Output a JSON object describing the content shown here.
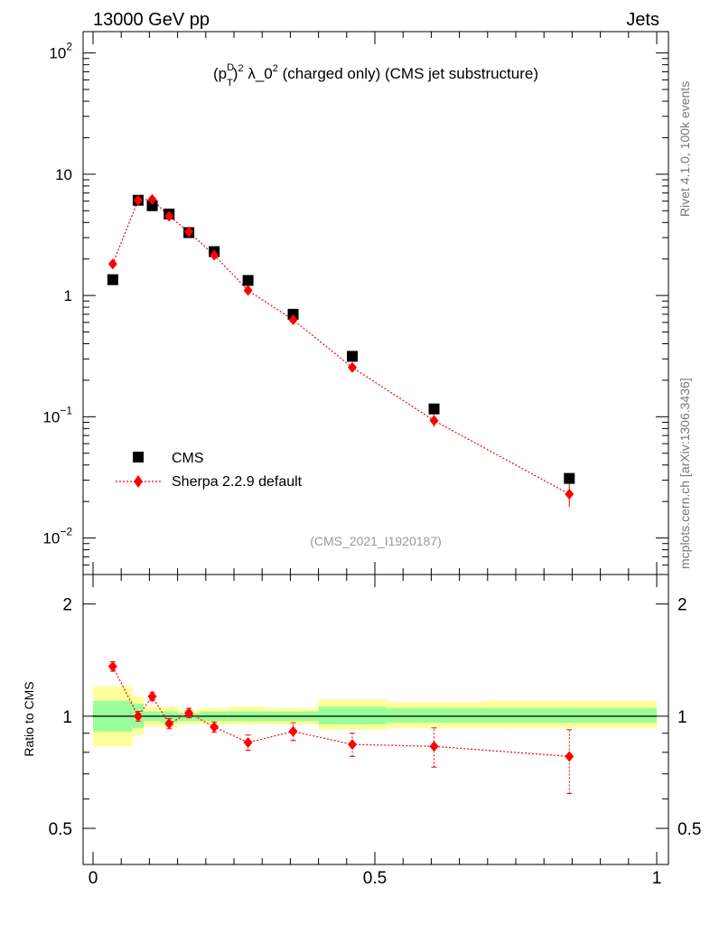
{
  "header": {
    "left": "13000 GeV pp",
    "right": "Jets"
  },
  "plot_title": "(pTD)2 λ_02 (charged only) (CMS jet substructure)",
  "side_labels": {
    "rivet": "Rivet 4.1.0,  100k events",
    "mcplots": "mcplots.cern.ch [arXiv:1306.3436]"
  },
  "watermark": "(CMS_2021_I1920187)",
  "legend": {
    "cms": "CMS",
    "sherpa": "Sherpa 2.2.9 default"
  },
  "ratio_ylabel": "Ratio to CMS",
  "colors": {
    "data": "#000000",
    "mc": "#ff0000",
    "band_inner": "#99ff99",
    "band_outer": "#ffff99"
  },
  "chart_data": [
    {
      "type": "scatter",
      "panel": "main",
      "yscale": "log",
      "xlim": [
        0,
        1
      ],
      "ylim": [
        0.005,
        150
      ],
      "yticks": [
        {
          "value": 0.01,
          "base": "10",
          "exp": "−2"
        },
        {
          "value": 0.1,
          "base": "10",
          "exp": "−1"
        },
        {
          "value": 1,
          "label": "1"
        },
        {
          "value": 10,
          "label": "10"
        },
        {
          "value": 100,
          "base": "10",
          "exp": "2"
        }
      ],
      "series": [
        {
          "name": "CMS",
          "marker": "square",
          "x": [
            0.035,
            0.08,
            0.105,
            0.135,
            0.17,
            0.215,
            0.275,
            0.355,
            0.46,
            0.605,
            0.845
          ],
          "y": [
            1.35,
            6.1,
            5.5,
            4.7,
            3.3,
            2.3,
            1.33,
            0.7,
            0.315,
            0.116,
            0.031
          ]
        },
        {
          "name": "Sherpa 2.2.9 default",
          "marker": "diamond",
          "line": "dotted",
          "x": [
            0.035,
            0.08,
            0.105,
            0.135,
            0.17,
            0.215,
            0.275,
            0.355,
            0.46,
            0.605,
            0.845
          ],
          "y": [
            1.82,
            6.1,
            6.2,
            4.5,
            3.35,
            2.15,
            1.1,
            0.63,
            0.255,
            0.093,
            0.023
          ],
          "yerr_low": [
            0.1,
            0.25,
            0.3,
            0.2,
            0.15,
            0.12,
            0.07,
            0.04,
            0.02,
            0.011,
            0.005
          ],
          "yerr_high": [
            0.1,
            0.25,
            0.3,
            0.2,
            0.15,
            0.12,
            0.07,
            0.04,
            0.02,
            0.011,
            0.005
          ]
        }
      ]
    },
    {
      "type": "scatter",
      "panel": "ratio",
      "yscale": "log",
      "xlim": [
        0,
        1
      ],
      "ylim": [
        0.4,
        2.4
      ],
      "xticks": [
        {
          "value": 0,
          "label": "0"
        },
        {
          "value": 0.5,
          "label": "0.5"
        },
        {
          "value": 1,
          "label": "1"
        }
      ],
      "yticks": [
        {
          "value": 0.5,
          "label": "0.5"
        },
        {
          "value": 1,
          "label": "1"
        },
        {
          "value": 2,
          "label": "2"
        }
      ],
      "bands": [
        {
          "x0": 0.0,
          "x1": 0.07,
          "inner": [
            0.91,
            1.1
          ],
          "outer": [
            0.83,
            1.2
          ]
        },
        {
          "x0": 0.07,
          "x1": 0.09,
          "inner": [
            0.93,
            1.08
          ],
          "outer": [
            0.89,
            1.13
          ]
        },
        {
          "x0": 0.09,
          "x1": 0.12,
          "inner": [
            0.97,
            1.03
          ],
          "outer": [
            0.94,
            1.06
          ]
        },
        {
          "x0": 0.12,
          "x1": 0.15,
          "inner": [
            0.96,
            1.03
          ],
          "outer": [
            0.93,
            1.06
          ]
        },
        {
          "x0": 0.15,
          "x1": 0.19,
          "inner": [
            0.97,
            1.02
          ],
          "outer": [
            0.95,
            1.04
          ]
        },
        {
          "x0": 0.19,
          "x1": 0.24,
          "inner": [
            0.97,
            1.03
          ],
          "outer": [
            0.95,
            1.05
          ]
        },
        {
          "x0": 0.24,
          "x1": 0.31,
          "inner": [
            0.97,
            1.03
          ],
          "outer": [
            0.95,
            1.06
          ]
        },
        {
          "x0": 0.31,
          "x1": 0.4,
          "inner": [
            0.97,
            1.03
          ],
          "outer": [
            0.95,
            1.05
          ]
        },
        {
          "x0": 0.4,
          "x1": 0.52,
          "inner": [
            0.95,
            1.06
          ],
          "outer": [
            0.92,
            1.11
          ]
        },
        {
          "x0": 0.52,
          "x1": 0.69,
          "inner": [
            0.96,
            1.05
          ],
          "outer": [
            0.93,
            1.09
          ]
        },
        {
          "x0": 0.69,
          "x1": 1.0,
          "inner": [
            0.96,
            1.05
          ],
          "outer": [
            0.93,
            1.1
          ]
        }
      ],
      "series": [
        {
          "name": "Sherpa 2.2.9 default / CMS",
          "marker": "diamond",
          "line": "dotted",
          "x": [
            0.035,
            0.08,
            0.105,
            0.135,
            0.17,
            0.215,
            0.275,
            0.355,
            0.46,
            0.605,
            0.845
          ],
          "y": [
            1.36,
            1.0,
            1.13,
            0.955,
            1.02,
            0.935,
            0.85,
            0.91,
            0.84,
            0.83,
            0.78
          ],
          "yerr_low": [
            0.04,
            0.03,
            0.03,
            0.03,
            0.03,
            0.03,
            0.04,
            0.05,
            0.06,
            0.1,
            0.16
          ],
          "yerr_high": [
            0.04,
            0.03,
            0.03,
            0.03,
            0.03,
            0.03,
            0.04,
            0.05,
            0.06,
            0.1,
            0.14
          ]
        }
      ],
      "reference_line": 1
    }
  ]
}
